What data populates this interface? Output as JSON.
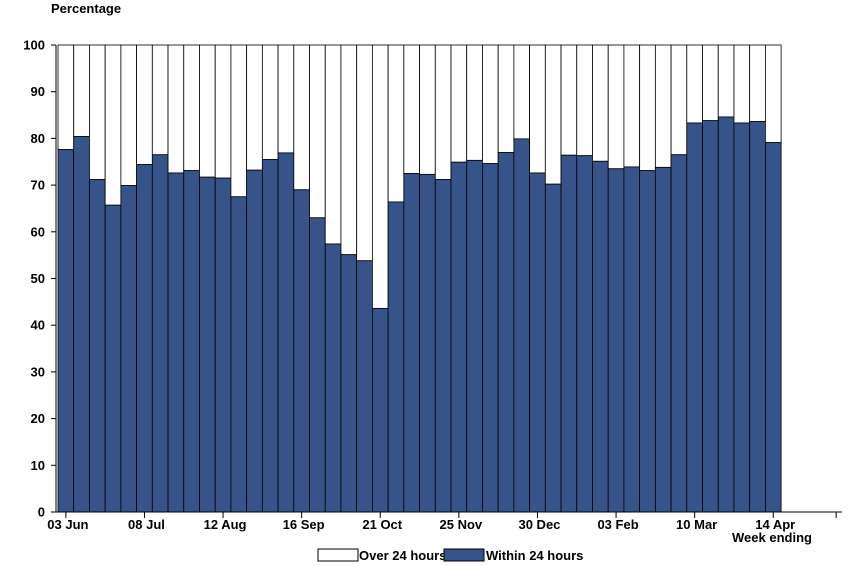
{
  "chart_data": {
    "type": "bar",
    "stacked": true,
    "ylabel": "Percentage",
    "xlabel": "Week ending",
    "ylim": [
      0,
      100
    ],
    "yticks": [
      0,
      10,
      20,
      30,
      40,
      50,
      60,
      70,
      80,
      90,
      100
    ],
    "grid": false,
    "legend_position": "bottom-center",
    "x_tick_labels": [
      "03 Jun",
      "08 Jul",
      "12 Aug",
      "16 Sep",
      "21 Oct",
      "25 Nov",
      "30 Dec",
      "03 Feb",
      "10 Mar",
      "14 Apr"
    ],
    "x_tick_label_week_index": [
      0,
      5,
      10,
      15,
      20,
      25,
      30,
      35,
      40,
      45
    ],
    "series": [
      {
        "name": "Within 24 hours",
        "color": "#36548a",
        "values": [
          77.6,
          80.4,
          71.2,
          65.7,
          69.9,
          74.4,
          76.5,
          72.6,
          73.1,
          71.7,
          71.5,
          67.5,
          73.2,
          75.5,
          76.9,
          69.0,
          63.0,
          57.4,
          55.1,
          53.8,
          43.6,
          66.4,
          72.5,
          72.3,
          71.2,
          74.9,
          75.3,
          74.6,
          77.0,
          79.9,
          72.6,
          70.2,
          76.4,
          76.3,
          75.1,
          73.5,
          73.9,
          73.1,
          73.8,
          76.5,
          83.3,
          83.8,
          84.6,
          83.3,
          83.6,
          79.1
        ]
      },
      {
        "name": "Over 24 hours",
        "color": "#ffffff",
        "values": [
          22.4,
          19.6,
          28.8,
          34.3,
          30.1,
          25.6,
          23.5,
          27.4,
          26.9,
          28.3,
          28.5,
          32.5,
          26.8,
          24.5,
          23.1,
          31.0,
          37.0,
          42.6,
          44.9,
          46.2,
          56.4,
          33.6,
          27.5,
          27.7,
          28.8,
          25.1,
          24.7,
          25.4,
          23.0,
          20.1,
          27.4,
          29.8,
          23.6,
          23.7,
          24.9,
          26.5,
          26.1,
          26.9,
          26.2,
          23.5,
          16.7,
          16.2,
          15.4,
          16.7,
          16.4,
          20.9
        ]
      }
    ],
    "legend": [
      "Over 24 hours",
      "Within 24 hours"
    ]
  }
}
